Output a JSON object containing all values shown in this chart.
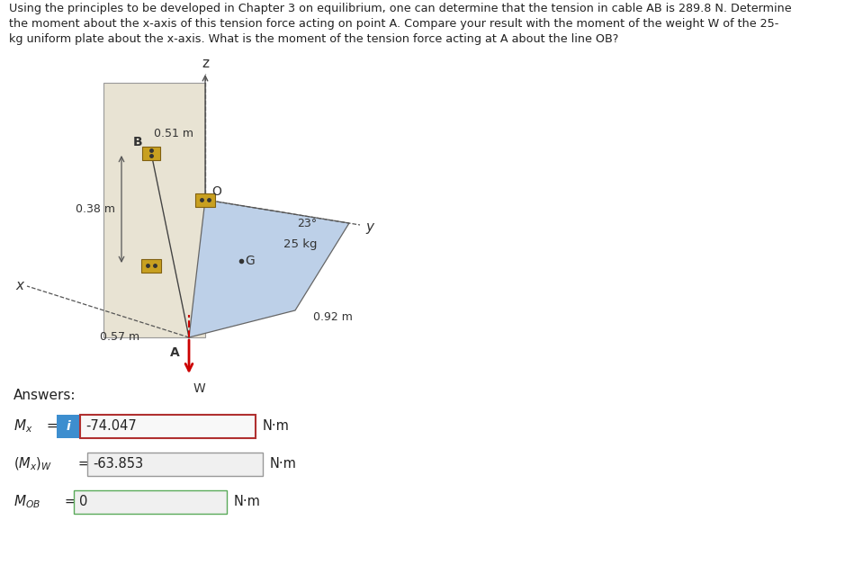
{
  "problem_text_line1": "Using the principles to be developed in Chapter 3 on equilibrium, one can determine that the tension in cable AB is 289.8 N. Determine",
  "problem_text_line2": "the moment about the x-axis of this tension force acting on point A. Compare your result with the moment of the weight W of the 25-",
  "problem_text_line3": "kg uniform plate about the x-axis. What is the moment of the tension force acting at A about the line OB?",
  "answers_label": "Answers:",
  "row1_value": "-74.047",
  "row1_unit": "N·m",
  "row2_value": "-63.853",
  "row2_unit": "N·m",
  "row3_value": "0",
  "row3_unit": "N·m",
  "dim_038": "0.38 m",
  "dim_057": "0.57 m",
  "dim_051": "0.51 m",
  "dim_092": "0.92 m",
  "dim_23": "23°",
  "label_25kg": "25 kg",
  "label_A": "A",
  "label_B": "B",
  "label_O": "O",
  "label_G": "G",
  "label_W": "W",
  "label_x": "x",
  "label_y": "y",
  "label_z": "z",
  "bg_color": "#ffffff",
  "plate_color": "#bdd0e8",
  "wall_color": "#e8e3d3",
  "icon_bg": "#3d8ecf",
  "icon_text": "i",
  "box1_border": "#b03030",
  "box2_border": "#999999",
  "box3_border": "#5aaa5a",
  "cable_color": "#444444",
  "arrow_color": "#cc0000",
  "axis_color": "#555555",
  "hinge_color": "#c8a020",
  "hinge_edge": "#806010"
}
